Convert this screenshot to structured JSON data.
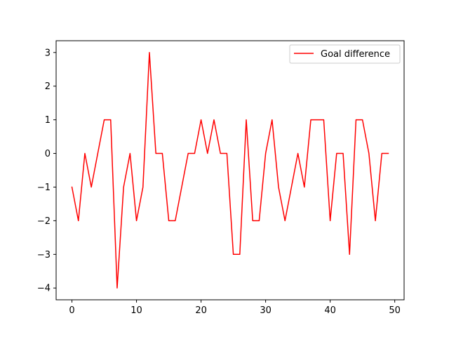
{
  "chart_data": {
    "type": "line",
    "title": "",
    "xlabel": "",
    "ylabel": "",
    "xlim": [
      -2.45,
      51.45
    ],
    "ylim": [
      -4.35,
      3.35
    ],
    "x_ticks": [
      0,
      10,
      20,
      30,
      40,
      50
    ],
    "y_ticks": [
      -4,
      -3,
      -2,
      -1,
      0,
      1,
      2,
      3
    ],
    "grid": false,
    "legend_position": "top-right",
    "series": [
      {
        "name": "Goal difference",
        "color": "#ff0000",
        "x": [
          0,
          1,
          2,
          3,
          4,
          5,
          6,
          7,
          8,
          9,
          10,
          11,
          12,
          13,
          14,
          15,
          16,
          17,
          18,
          19,
          20,
          21,
          22,
          23,
          24,
          25,
          26,
          27,
          28,
          29,
          30,
          31,
          32,
          33,
          34,
          35,
          36,
          37,
          38,
          39,
          40,
          41,
          42,
          43,
          44,
          45,
          46,
          47,
          48,
          49
        ],
        "y": [
          -1,
          -2,
          0,
          -1,
          0,
          1,
          1,
          -4,
          -1,
          0,
          -2,
          -1,
          3,
          0,
          0,
          -2,
          -2,
          -1,
          0,
          0,
          1,
          0,
          1,
          0,
          0,
          -3,
          -3,
          1,
          -2,
          -2,
          0,
          1,
          -1,
          -2,
          -1,
          0,
          -1,
          1,
          1,
          1,
          -2,
          0,
          0,
          -3,
          1,
          1,
          0,
          -2,
          0,
          0
        ]
      }
    ]
  }
}
